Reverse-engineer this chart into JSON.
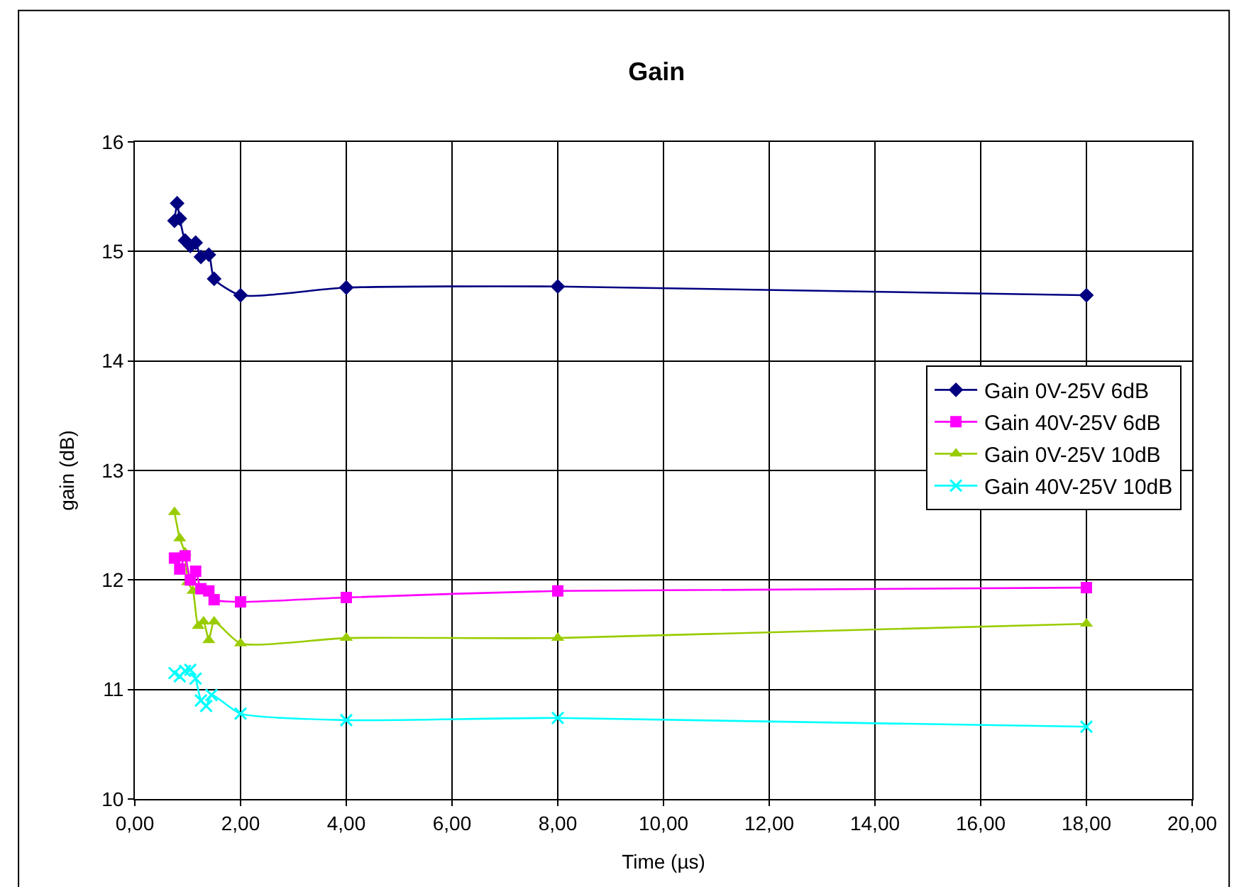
{
  "chart_data": {
    "type": "line",
    "title": "Gain",
    "xlabel": "Time (µs)",
    "ylabel": "gain (dB)",
    "xlim": [
      0,
      20
    ],
    "xticks": [
      {
        "value": 0,
        "label": "0,00"
      },
      {
        "value": 2,
        "label": "2,00"
      },
      {
        "value": 4,
        "label": "4,00"
      },
      {
        "value": 6,
        "label": "6,00"
      },
      {
        "value": 8,
        "label": "8,00"
      },
      {
        "value": 10,
        "label": "10,00"
      },
      {
        "value": 12,
        "label": "12,00"
      },
      {
        "value": 14,
        "label": "14,00"
      },
      {
        "value": 16,
        "label": "16,00"
      },
      {
        "value": 18,
        "label": "18,00"
      },
      {
        "value": 20,
        "label": "20,00"
      }
    ],
    "ylim": [
      10,
      16
    ],
    "yticks": [
      10,
      11,
      12,
      13,
      14,
      15,
      16
    ],
    "grid": true,
    "legend": "right",
    "series": [
      {
        "name": "Gain 0V-25V 6dB",
        "color": "#000080",
        "marker": "diamond",
        "x": [
          0.75,
          0.8,
          0.85,
          0.95,
          1.05,
          1.15,
          1.25,
          1.4,
          1.5,
          2,
          4,
          8,
          18
        ],
        "values": [
          15.28,
          15.44,
          15.3,
          15.1,
          15.05,
          15.08,
          14.95,
          14.97,
          14.75,
          14.6,
          14.67,
          14.68,
          14.6
        ]
      },
      {
        "name": "Gain 40V-25V 6dB",
        "color": "#ff00ff",
        "marker": "square",
        "x": [
          0.75,
          0.85,
          0.95,
          1.05,
          1.15,
          1.25,
          1.4,
          1.5,
          2,
          4,
          8,
          18
        ],
        "values": [
          12.2,
          12.1,
          12.22,
          12.0,
          12.08,
          11.92,
          11.9,
          11.82,
          11.8,
          11.84,
          11.9,
          11.93
        ]
      },
      {
        "name": "Gain 0V-25V 10dB",
        "color": "#99cc00",
        "marker": "triangle",
        "x": [
          0.75,
          0.85,
          0.95,
          1.0,
          1.1,
          1.2,
          1.3,
          1.4,
          1.5,
          2,
          4,
          8,
          18
        ],
        "values": [
          12.62,
          12.38,
          12.25,
          11.98,
          11.9,
          11.58,
          11.62,
          11.45,
          11.62,
          11.42,
          11.47,
          11.47,
          11.6
        ]
      },
      {
        "name": "Gain 40V-25V 10dB",
        "color": "#00ffff",
        "marker": "cross",
        "x": [
          0.75,
          0.85,
          0.95,
          1.05,
          1.15,
          1.25,
          1.35,
          1.45,
          2,
          4,
          8,
          18
        ],
        "values": [
          11.15,
          11.12,
          11.17,
          11.18,
          11.1,
          10.9,
          10.85,
          10.95,
          10.78,
          10.72,
          10.74,
          10.66
        ]
      }
    ]
  }
}
